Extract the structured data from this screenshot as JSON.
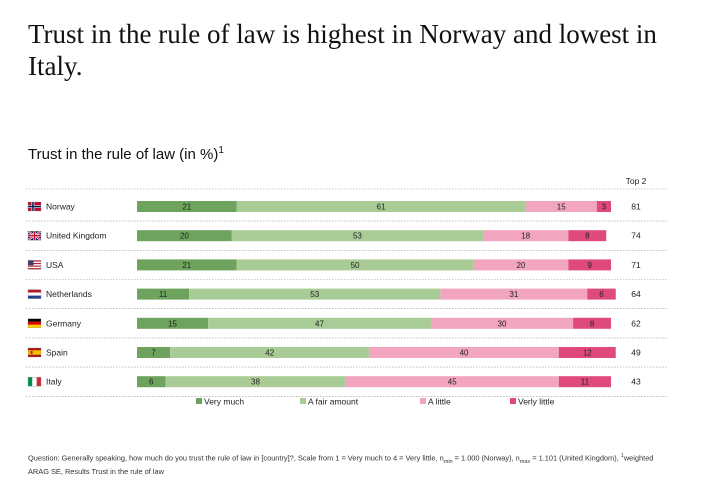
{
  "headline": "Trust in the rule of law is highest in Norway and lowest in Italy.",
  "footnote": {
    "question": "Question: Generally speaking, how much do you trust the rule of law in [country]?, Scale from 1 = Very much to 4 = Very little, n",
    "nmin_sub": "min",
    "nmin_text": " = 1.000 (Norway), n",
    "nmax_sub": "max",
    "nmax_text": " = 1.101 (United Kingdom), ",
    "weighted_sup": "1",
    "weighted_text": "weighted",
    "source": "ARAG SE, Results Trust in the rule of law"
  },
  "chart_data": {
    "type": "bar",
    "orientation": "horizontal",
    "stacked": true,
    "title": "Trust in the rule of law (in %)",
    "title_sup": "1",
    "top2_header": "Top 2",
    "xlim": [
      0,
      100
    ],
    "legend_position": "bottom",
    "categories": [
      "Norway",
      "United Kingdom",
      "USA",
      "Netherlands",
      "Germany",
      "Spain",
      "Italy"
    ],
    "flags": [
      "flag-norway",
      "flag-united-kingdom",
      "flag-usa",
      "flag-netherlands",
      "flag-germany",
      "flag-spain",
      "flag-italy"
    ],
    "series": [
      {
        "name": "Very much",
        "color": "#6ea35e",
        "values": [
          21,
          20,
          21,
          11,
          15,
          7,
          6
        ]
      },
      {
        "name": "A fair amount",
        "color": "#a9cb95",
        "values": [
          61,
          53,
          50,
          53,
          47,
          42,
          38
        ]
      },
      {
        "name": "A little",
        "color": "#f2a5bf",
        "values": [
          15,
          18,
          20,
          31,
          30,
          40,
          45
        ]
      },
      {
        "name": "Verly little",
        "color": "#e0497c",
        "values": [
          3,
          8,
          9,
          6,
          8,
          12,
          11
        ]
      }
    ],
    "top2": [
      81,
      74,
      71,
      64,
      62,
      49,
      43
    ]
  }
}
